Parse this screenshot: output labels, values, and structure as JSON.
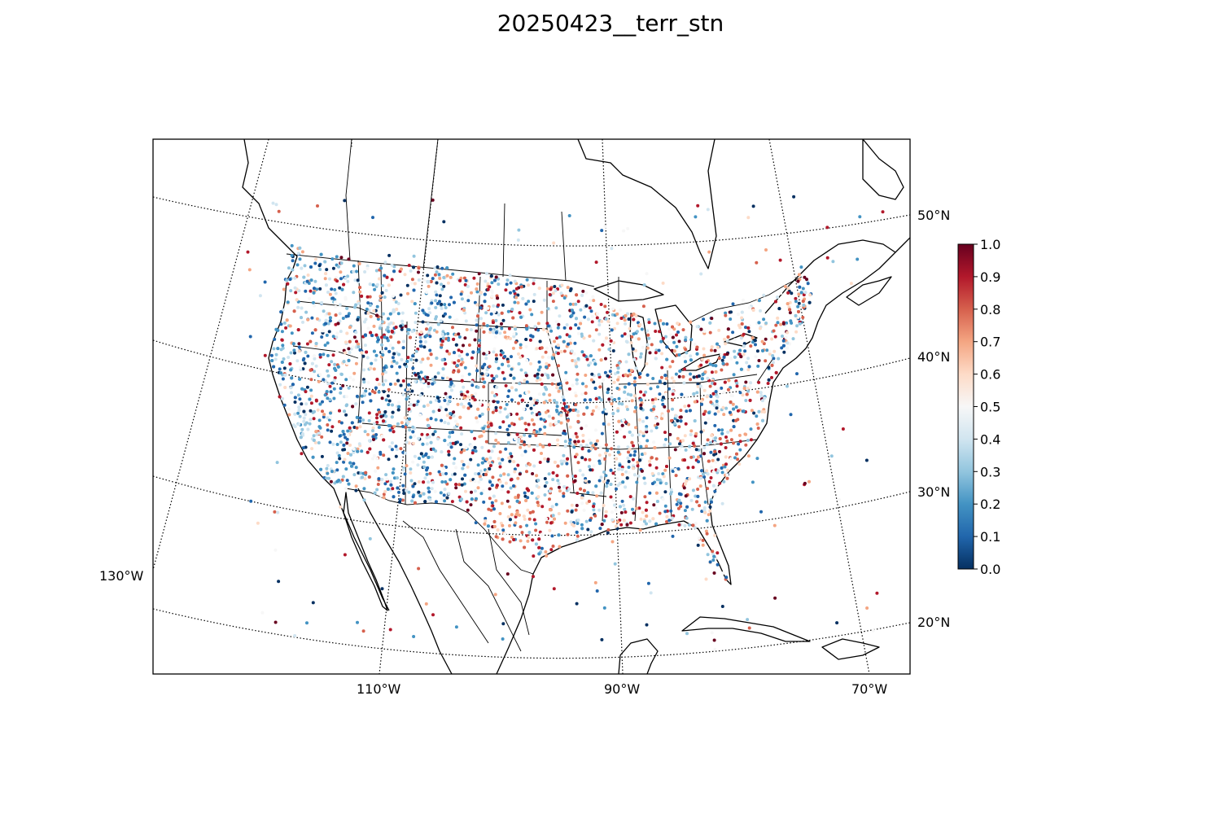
{
  "figure": {
    "title": "20250423__terr_stn"
  },
  "map": {
    "projection": "lambert-conformal-conic",
    "region": "continental United States, southern Canada, northern Mexico, Caribbean",
    "lat_labels": [
      "50°N",
      "40°N",
      "30°N",
      "20°N"
    ],
    "lon_labels": [
      "130°W",
      "110°W",
      "90°W",
      "70°W"
    ],
    "graticule_style": "dotted",
    "marker": "small filled circle, station locations",
    "hotspot_note": "dense red cluster over central Texas"
  },
  "colorbar": {
    "colormap": "RdBu_r",
    "min": 0.0,
    "max": 1.0,
    "ticks": [
      "0.0",
      "0.1",
      "0.2",
      "0.3",
      "0.4",
      "0.5",
      "0.6",
      "0.7",
      "0.8",
      "0.9",
      "1.0"
    ],
    "colors": {
      "low": "#053061",
      "mid": "#f7f7f7",
      "high": "#67001f"
    }
  }
}
